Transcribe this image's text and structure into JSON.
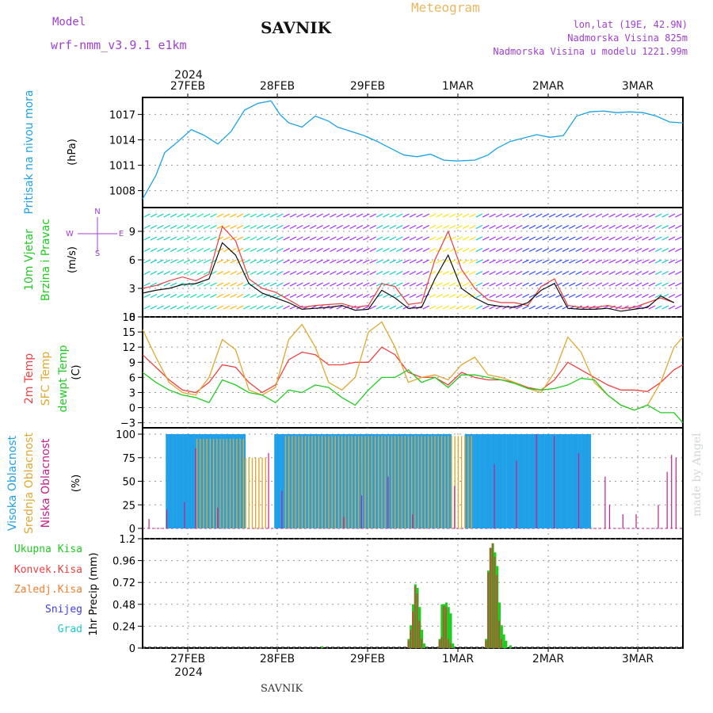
{
  "header": {
    "model_label": "Model",
    "model_name": "wrf-nmm_v3.9.1  e1km",
    "station": "SAVNIK",
    "product": "Meteogram",
    "lonlat": "lon,lat (19E, 42.9N)",
    "elevation": "Nadmorska Visina 825m",
    "model_elevation": "Nadmorska Visina u modelu 1221.99m"
  },
  "footer": {
    "station": "SAVNIK",
    "credit": "made by Angel"
  },
  "time_axis": {
    "year": "2024",
    "days": [
      "27FEB",
      "28FEB",
      "29FEB",
      "1MAR",
      "2MAR",
      "3MAR"
    ]
  },
  "colors": {
    "pressure": "#1aa3e8",
    "t2m": "#f04040",
    "tsfc": "#e0a830",
    "dewpoint": "#20cc20",
    "cloud_high": "#20a0e8",
    "cloud_mid": "#e0a830",
    "cloud_low": "#c0208c",
    "precip_total": "#20cc20",
    "precip_conv": "#a06030",
    "wind_speed": "#111111",
    "gust": "#e84040"
  },
  "chart_data": [
    {
      "type": "line",
      "name": "pressure",
      "title": "Pritisak na nivou mora",
      "ylabel": "(hPa)",
      "yticks": [
        1008,
        1011,
        1014,
        1017
      ],
      "ylim": [
        1006,
        1019
      ],
      "x_hours": [
        0,
        6,
        10,
        16,
        22,
        28,
        34,
        40,
        46,
        52,
        58,
        62,
        66,
        72,
        78,
        84,
        88,
        94,
        100,
        106,
        112,
        118,
        124,
        130,
        136,
        142,
        150,
        156,
        160,
        166,
        172,
        178,
        184,
        190,
        196,
        202,
        208,
        214,
        220,
        226,
        232,
        238,
        244
      ],
      "values": [
        1007.0,
        1009.8,
        1012.5,
        1013.8,
        1015.2,
        1014.5,
        1013.5,
        1015.0,
        1017.5,
        1018.3,
        1018.6,
        1017.0,
        1016.0,
        1015.5,
        1016.8,
        1016.2,
        1015.5,
        1015.0,
        1014.5,
        1013.8,
        1013.0,
        1012.2,
        1012.0,
        1012.3,
        1011.6,
        1011.5,
        1011.6,
        1012.2,
        1013.0,
        1013.8,
        1014.2,
        1014.6,
        1014.3,
        1014.5,
        1016.8,
        1017.3,
        1017.4,
        1017.2,
        1017.3,
        1017.2,
        1016.8,
        1016.1,
        1016.0
      ]
    },
    {
      "type": "line",
      "name": "wind",
      "title": "10m Vjetar",
      "subtitle": "Brzina i Pravac",
      "ylabel": "(m/s)",
      "yticks": [
        0,
        3,
        6,
        9
      ],
      "ylim": [
        0,
        11.5
      ],
      "compass": [
        "N",
        "E",
        "W",
        "S"
      ],
      "x_hours": [
        0,
        6,
        12,
        18,
        24,
        30,
        36,
        42,
        48,
        54,
        60,
        66,
        72,
        78,
        84,
        90,
        96,
        102,
        108,
        114,
        120,
        126,
        132,
        138,
        144,
        150,
        156,
        162,
        168,
        174,
        180,
        186,
        192,
        198,
        204,
        210,
        216,
        222,
        228,
        234,
        240
      ],
      "series": [
        {
          "name": "speed",
          "values": [
            2.5,
            2.8,
            3.0,
            3.4,
            3.5,
            4.0,
            7.8,
            6.5,
            3.5,
            2.5,
            2.0,
            1.5,
            0.8,
            0.9,
            1.0,
            1.2,
            0.7,
            0.8,
            2.8,
            2.0,
            0.9,
            1.0,
            4.0,
            6.5,
            3.0,
            2.0,
            1.3,
            1.1,
            1.0,
            1.5,
            2.8,
            3.5,
            0.9,
            0.8,
            0.8,
            0.9,
            0.6,
            0.8,
            1.0,
            2.2,
            1.5
          ]
        },
        {
          "name": "gust",
          "values": [
            3.0,
            3.3,
            3.8,
            4.2,
            3.8,
            4.5,
            9.5,
            8.0,
            4.0,
            3.0,
            2.6,
            1.8,
            1.0,
            1.2,
            1.3,
            1.4,
            1.0,
            1.2,
            3.5,
            3.2,
            1.3,
            1.5,
            6.0,
            9.0,
            5.0,
            3.0,
            1.8,
            1.5,
            1.5,
            1.2,
            3.2,
            4.0,
            1.2,
            1.0,
            1.0,
            1.2,
            0.9,
            1.0,
            1.5,
            2.0,
            1.5
          ]
        }
      ]
    },
    {
      "type": "line",
      "name": "temperature",
      "title": "2m Temp",
      "ylabel": "(C)",
      "yticks": [
        -3,
        0,
        3,
        6,
        9,
        12,
        15,
        18
      ],
      "ylim": [
        -4,
        18
      ],
      "x_hours": [
        0,
        6,
        12,
        18,
        24,
        30,
        36,
        42,
        48,
        54,
        60,
        66,
        72,
        78,
        84,
        90,
        96,
        102,
        108,
        114,
        120,
        126,
        132,
        138,
        144,
        150,
        156,
        162,
        168,
        174,
        180,
        186,
        192,
        198,
        204,
        210,
        216,
        222,
        228,
        234,
        240,
        244
      ],
      "series": [
        {
          "name": "2m Temp",
          "values": [
            10.5,
            8.0,
            5.5,
            3.5,
            3.0,
            5.0,
            8.5,
            8.0,
            5.0,
            3.0,
            4.5,
            9.5,
            11.0,
            10.5,
            8.5,
            8.5,
            9.0,
            9.0,
            12.0,
            10.5,
            7.0,
            6.0,
            6.0,
            4.5,
            7.0,
            6.0,
            5.5,
            5.5,
            5.0,
            4.0,
            3.5,
            5.5,
            9.0,
            7.5,
            6.0,
            4.5,
            3.5,
            3.5,
            3.2,
            5.0,
            7.5,
            8.5
          ]
        },
        {
          "name": "SFC Temp",
          "values": [
            15.5,
            10.0,
            5.0,
            3.0,
            2.5,
            6.0,
            13.5,
            11.5,
            3.5,
            2.5,
            4.0,
            13.5,
            16.5,
            12.0,
            5.0,
            3.5,
            6.0,
            15.0,
            17.0,
            12.0,
            5.0,
            6.0,
            6.5,
            5.5,
            8.5,
            10.0,
            6.5,
            6.0,
            5.0,
            3.8,
            3.0,
            7.0,
            14.0,
            11.0,
            5.0,
            2.5,
            0.5,
            -0.5,
            0.5,
            5.0,
            12.0,
            14.0
          ]
        },
        {
          "name": "dewpt Temp",
          "values": [
            7.0,
            5.0,
            3.5,
            2.5,
            2.0,
            1.0,
            5.5,
            4.5,
            3.0,
            2.5,
            1.0,
            3.5,
            3.0,
            4.5,
            4.0,
            2.0,
            0.5,
            3.5,
            6.0,
            6.0,
            7.5,
            5.0,
            6.0,
            4.0,
            6.5,
            6.5,
            6.0,
            5.5,
            4.8,
            3.8,
            3.5,
            3.8,
            4.5,
            5.8,
            5.5,
            2.5,
            0.5,
            -0.5,
            0.5,
            -1.0,
            -1.0,
            -3.0
          ]
        }
      ]
    },
    {
      "type": "bar",
      "name": "clouds",
      "title": "Visoka Oblacnost",
      "ylabel": "(%)",
      "yticks": [
        0,
        25,
        50,
        75,
        100
      ],
      "ylim": [
        0,
        100
      ],
      "series": [
        {
          "name": "Visoka Oblacnost",
          "segments": [
            [
              11,
              46,
              100
            ],
            [
              60,
              139,
              100
            ],
            [
              146,
              202,
              100
            ]
          ]
        },
        {
          "name": "Srednja Oblacnost",
          "segments": [
            [
              24,
              46,
              95
            ],
            [
              46,
              56,
              75
            ],
            [
              64,
              149,
              98
            ]
          ]
        },
        {
          "name": "Niska Oblacnost",
          "spikes": [
            [
              2,
              10
            ],
            [
              10,
              20
            ],
            [
              18,
              28
            ],
            [
              23,
              85
            ],
            [
              33,
              22
            ],
            [
              56,
              80
            ],
            [
              62,
              40
            ],
            [
              90,
              12
            ],
            [
              98,
              35
            ],
            [
              110,
              55
            ],
            [
              121,
              15
            ],
            [
              140,
              45
            ],
            [
              158,
              68
            ],
            [
              168,
              72
            ],
            [
              177,
              100
            ],
            [
              185,
              98
            ],
            [
              196,
              80
            ],
            [
              208,
              55
            ],
            [
              210,
              25
            ],
            [
              216,
              15
            ],
            [
              222,
              15
            ],
            [
              232,
              25
            ],
            [
              236,
              60
            ],
            [
              238,
              78
            ],
            [
              240,
              75
            ]
          ]
        }
      ]
    },
    {
      "type": "bar",
      "name": "precipitation",
      "title": "Ukupna Kisa",
      "ylabel": "1hr Precip (mm)",
      "yticks": [
        0,
        0.24,
        0.48,
        0.72,
        0.96,
        1.2
      ],
      "ylim": [
        0,
        1.2
      ],
      "legend": [
        "Ukupna Kisa",
        "Konvek.Kisa",
        "Zaledj.Kisa",
        "Snijeg",
        "Grad"
      ],
      "x_hours": [
        81,
        120,
        121,
        122,
        123,
        124,
        125,
        126,
        127,
        134,
        135,
        136,
        137,
        138,
        139,
        140,
        155,
        156,
        157,
        158,
        159,
        160,
        161,
        162,
        163,
        164,
        166
      ],
      "series": [
        {
          "name": "Ukupna Kisa",
          "values": [
            0.02,
            0.1,
            0.25,
            0.48,
            0.7,
            0.66,
            0.45,
            0.2,
            0.05,
            0.1,
            0.48,
            0.48,
            0.5,
            0.45,
            0.38,
            0.05,
            0.1,
            0.85,
            1.1,
            1.15,
            1.05,
            0.9,
            0.5,
            0.25,
            0.15,
            0.08,
            0.03
          ]
        },
        {
          "name": "Konvek.Kisa",
          "values": [
            0.0,
            0.08,
            0.2,
            0.4,
            0.68,
            0.6,
            0.3,
            0.1,
            0.0,
            0.08,
            0.12,
            0.46,
            0.45,
            0.1,
            0.05,
            0.0,
            0.08,
            0.83,
            1.1,
            1.15,
            1.0,
            0.8,
            0.3,
            0.1,
            0.0,
            0.0,
            0.0
          ]
        }
      ]
    }
  ]
}
